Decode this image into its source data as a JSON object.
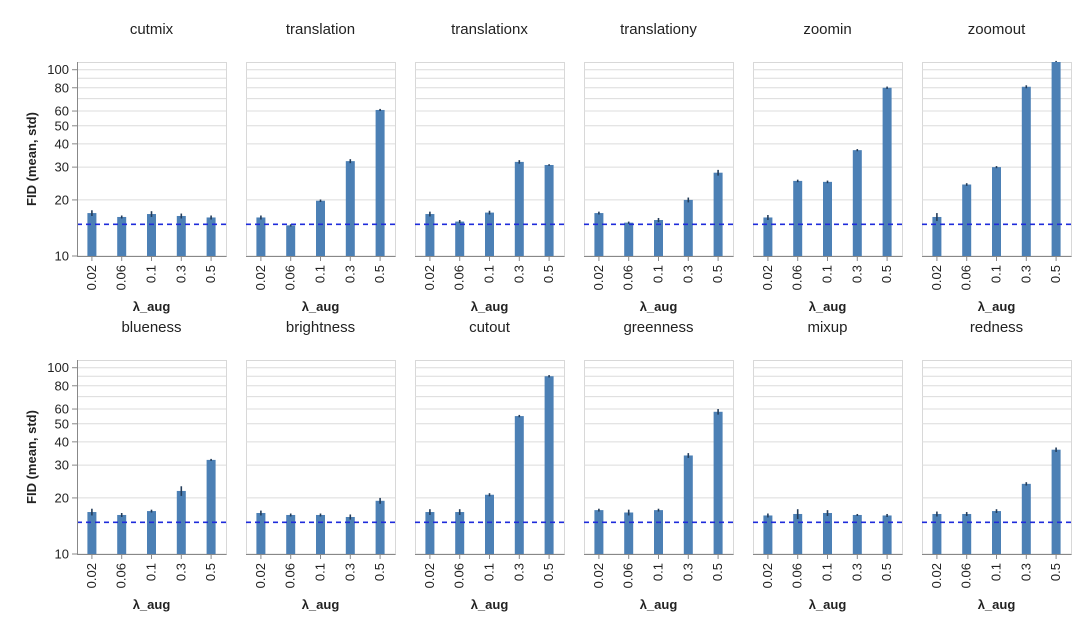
{
  "chart_data": {
    "type": "bar",
    "layout": "facet-grid",
    "scale": "log",
    "ylabel": "FID (mean, std)",
    "xlabel": "λ_aug",
    "ylim": [
      10,
      110
    ],
    "y_ticks": [
      10,
      20,
      30,
      40,
      50,
      60,
      80,
      100
    ],
    "categories": [
      "0.02",
      "0.06",
      "0.1",
      "0.3",
      "0.5"
    ],
    "baseline": 14.8,
    "colors": {
      "bar": "#4c80b5",
      "error": "#243d5a",
      "baseline": "#1f2cdb",
      "grid": "#dcdcdc",
      "axis": "#888888"
    },
    "panels": [
      {
        "title": "cutmix",
        "values": [
          17.0,
          16.2,
          16.8,
          16.4,
          16.1
        ],
        "err": [
          0.6,
          0.3,
          0.6,
          0.5,
          0.4
        ]
      },
      {
        "title": "translation",
        "values": [
          16.1,
          14.6,
          19.8,
          32.3,
          60.8
        ],
        "err": [
          0.4,
          0.2,
          0.3,
          0.8,
          0.8
        ]
      },
      {
        "title": "translationx",
        "values": [
          16.8,
          15.3,
          17.1,
          32.0,
          30.8
        ],
        "err": [
          0.5,
          0.3,
          0.4,
          0.7,
          0.3
        ]
      },
      {
        "title": "translationy",
        "values": [
          17.0,
          15.1,
          15.6,
          20.0,
          28.0
        ],
        "err": [
          0.3,
          0.2,
          0.4,
          0.6,
          1.0
        ]
      },
      {
        "title": "zoomin",
        "values": [
          16.1,
          25.3,
          25.0,
          37.0,
          80.0
        ],
        "err": [
          0.5,
          0.4,
          0.4,
          0.5,
          1.2
        ]
      },
      {
        "title": "zoomout",
        "values": [
          16.2,
          24.2,
          30.0,
          81.0,
          113.0
        ],
        "err": [
          0.8,
          0.4,
          0.4,
          1.5,
          1.5
        ]
      },
      {
        "title": "blueness",
        "values": [
          16.8,
          16.2,
          17.0,
          21.8,
          32.0
        ],
        "err": [
          0.7,
          0.4,
          0.3,
          1.3,
          0.4
        ]
      },
      {
        "title": "brightness",
        "values": [
          16.6,
          16.2,
          16.2,
          15.8,
          19.3
        ],
        "err": [
          0.5,
          0.3,
          0.3,
          0.5,
          0.7
        ]
      },
      {
        "title": "cutout",
        "values": [
          16.8,
          16.8,
          20.8,
          55.0,
          90.0
        ],
        "err": [
          0.6,
          0.6,
          0.4,
          0.8,
          1.3
        ]
      },
      {
        "title": "greenness",
        "values": [
          17.2,
          16.7,
          17.2,
          33.8,
          58.0
        ],
        "err": [
          0.3,
          0.6,
          0.3,
          1.0,
          2.0
        ]
      },
      {
        "title": "mixup",
        "values": [
          16.1,
          16.4,
          16.6,
          16.2,
          16.1
        ],
        "err": [
          0.4,
          1.0,
          0.6,
          0.2,
          0.3
        ]
      },
      {
        "title": "redness",
        "values": [
          16.4,
          16.4,
          17.0,
          23.8,
          36.3
        ],
        "err": [
          0.5,
          0.4,
          0.4,
          0.5,
          1.0
        ]
      }
    ]
  }
}
